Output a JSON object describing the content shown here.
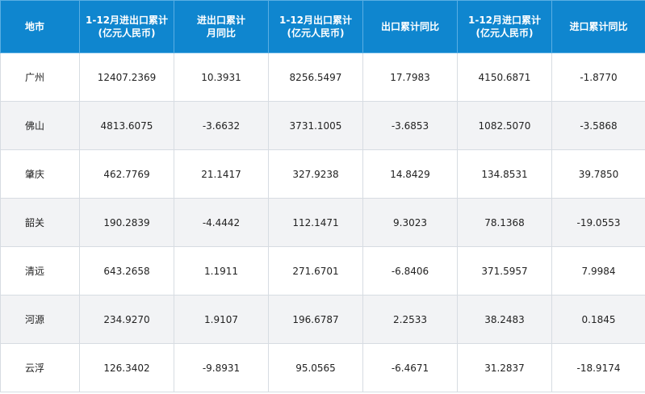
{
  "chart_data": {
    "type": "table",
    "columns": [
      {
        "line1": "地市",
        "line2": ""
      },
      {
        "line1": "1-12月进出口累计",
        "line2": "(亿元人民币)"
      },
      {
        "line1": "进出口累计",
        "line2": "月同比"
      },
      {
        "line1": "1-12月出口累计",
        "line2": "(亿元人民币)"
      },
      {
        "line1": "出口累计同比",
        "line2": ""
      },
      {
        "line1": "1-12月进口累计",
        "line2": "(亿元人民币)"
      },
      {
        "line1": "进口累计同比",
        "line2": ""
      }
    ],
    "rows": [
      [
        "广州",
        "12407.2369",
        "10.3931",
        "8256.5497",
        "17.7983",
        "4150.6871",
        "-1.8770"
      ],
      [
        "佛山",
        "4813.6075",
        "-3.6632",
        "3731.1005",
        "-3.6853",
        "1082.5070",
        "-3.5868"
      ],
      [
        "肇庆",
        "462.7769",
        "21.1417",
        "327.9238",
        "14.8429",
        "134.8531",
        "39.7850"
      ],
      [
        "韶关",
        "190.2839",
        "-4.4442",
        "112.1471",
        "9.3023",
        "78.1368",
        "-19.0553"
      ],
      [
        "清远",
        "643.2658",
        "1.1911",
        "271.6701",
        "-6.8406",
        "371.5957",
        "7.9984"
      ],
      [
        "河源",
        "234.9270",
        "1.9107",
        "196.6787",
        "2.2533",
        "38.2483",
        "0.1845"
      ],
      [
        "云浮",
        "126.3402",
        "-9.8931",
        "95.0565",
        "-6.4671",
        "31.2837",
        "-18.9174"
      ]
    ]
  }
}
